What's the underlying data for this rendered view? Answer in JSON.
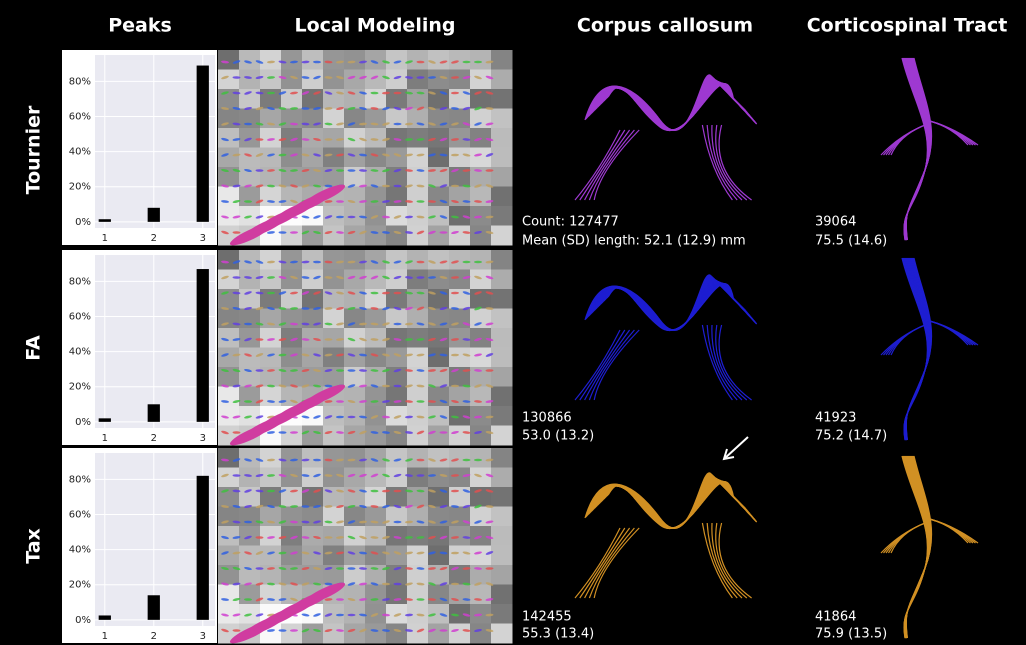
{
  "column_headers": [
    "Peaks",
    "Local Modeling",
    "Corpus callosum",
    "Corticospinal Tract"
  ],
  "row_labels": [
    "Tournier",
    "FA",
    "Tax"
  ],
  "stats": [
    {
      "cc": [
        "Count: 127477",
        "Mean (SD) length: 52.1 (12.9) mm"
      ],
      "cst": [
        "39064",
        "75.5 (14.6)"
      ]
    },
    {
      "cc": [
        "130866",
        "53.0 (13.2)"
      ],
      "cst": [
        "41923",
        "75.2 (14.7)"
      ]
    },
    {
      "cc": [
        "142455",
        "55.3 (13.4)"
      ],
      "cst": [
        "41864",
        "75.9 (13.5)"
      ]
    }
  ],
  "chart_data": [
    {
      "type": "bar",
      "x": [
        1,
        2,
        3
      ],
      "values": [
        1.5,
        8,
        89
      ],
      "color": "#000000",
      "xlim": [
        0.8,
        3.25
      ],
      "xticks": [
        1,
        2,
        3
      ],
      "ylim": [
        -3.5,
        95
      ],
      "yticks": [
        {
          "value": 0,
          "label": "0%"
        },
        {
          "value": 20,
          "label": "20%"
        },
        {
          "value": 40,
          "label": "40%"
        },
        {
          "value": 60,
          "label": "60%"
        },
        {
          "value": 80,
          "label": "80%"
        }
      ]
    },
    {
      "type": "bar",
      "x": [
        1,
        2,
        3
      ],
      "values": [
        2,
        10,
        87
      ],
      "color": "#000000",
      "xlim": [
        0.8,
        3.25
      ],
      "xticks": [
        1,
        2,
        3
      ],
      "ylim": [
        -3.5,
        95
      ],
      "yticks": [
        {
          "value": 0,
          "label": "0%"
        },
        {
          "value": 20,
          "label": "20%"
        },
        {
          "value": 40,
          "label": "40%"
        },
        {
          "value": 60,
          "label": "60%"
        },
        {
          "value": 80,
          "label": "80%"
        }
      ]
    },
    {
      "type": "bar",
      "x": [
        1,
        2,
        3
      ],
      "values": [
        2.5,
        14,
        82
      ],
      "color": "#000000",
      "xlim": [
        0.8,
        3.25
      ],
      "xticks": [
        1,
        2,
        3
      ],
      "ylim": [
        -3.5,
        95
      ],
      "yticks": [
        {
          "value": 0,
          "label": "0%"
        },
        {
          "value": 20,
          "label": "20%"
        },
        {
          "value": 40,
          "label": "40%"
        },
        {
          "value": 60,
          "label": "60%"
        },
        {
          "value": 80,
          "label": "80%"
        }
      ]
    }
  ]
}
